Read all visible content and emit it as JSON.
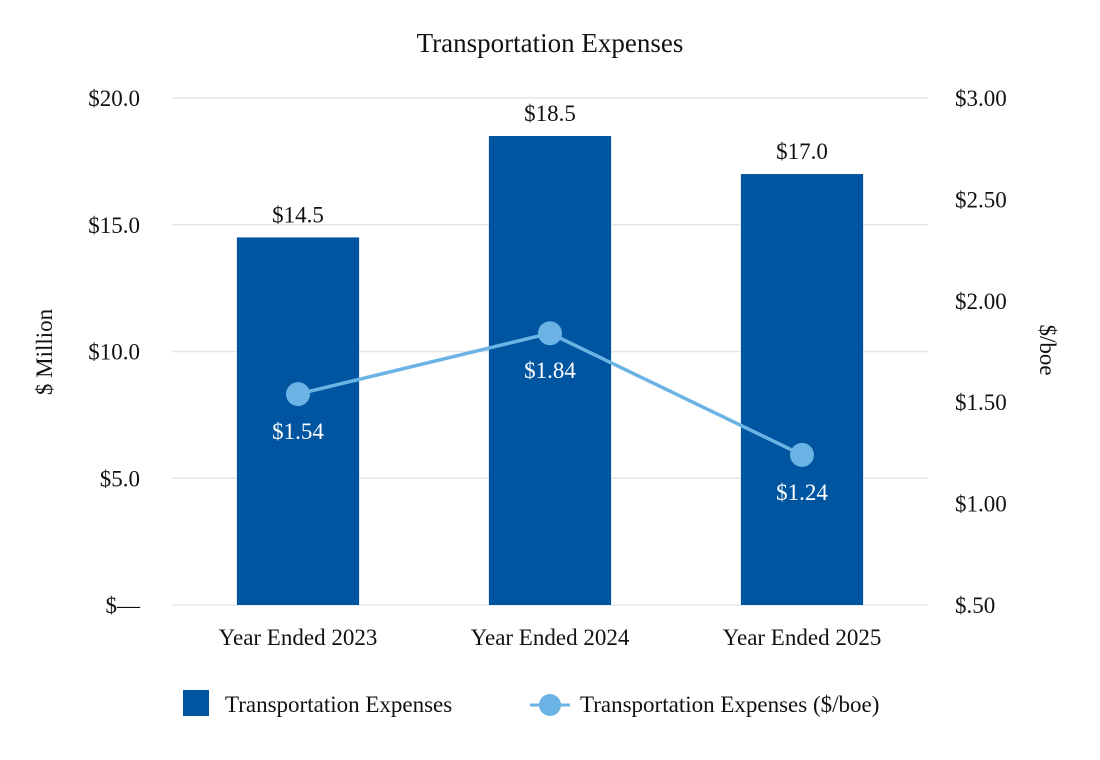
{
  "chart_data": {
    "type": "bar",
    "title": "Transportation Expenses",
    "categories": [
      "Year Ended 2023",
      "Year Ended 2024",
      "Year Ended 2025"
    ],
    "series": [
      {
        "name": "Transportation Expenses",
        "kind": "bar",
        "axis": "left",
        "values": [
          14.5,
          18.5,
          17.0
        ],
        "labels": [
          "$14.5",
          "$18.5",
          "$17.0"
        ],
        "color": "#0055a0"
      },
      {
        "name": "Transportation Expenses ($/boe)",
        "kind": "line",
        "axis": "right",
        "values": [
          1.54,
          1.84,
          1.24
        ],
        "labels": [
          "$1.54",
          "$1.84",
          "$1.24"
        ],
        "color": "#6bb3e4"
      }
    ],
    "y_left": {
      "label": "$ Million",
      "range": [
        0,
        20
      ],
      "ticks": [
        0,
        5,
        10,
        15,
        20
      ],
      "tick_labels": [
        "$—",
        "$5.0",
        "$10.0",
        "$15.0",
        "$20.0"
      ]
    },
    "y_right": {
      "label": "$/boe",
      "range": [
        0.5,
        3.0
      ],
      "ticks": [
        0.5,
        1.0,
        1.5,
        2.0,
        2.5,
        3.0
      ],
      "tick_labels": [
        "$.50",
        "$1.00",
        "$1.50",
        "$2.00",
        "$2.50",
        "$3.00"
      ]
    },
    "grid": true,
    "legend_position": "bottom"
  },
  "colors": {
    "bar": "#0055a0",
    "line": "#6bb3e4",
    "grid": "#e6e6e6"
  }
}
